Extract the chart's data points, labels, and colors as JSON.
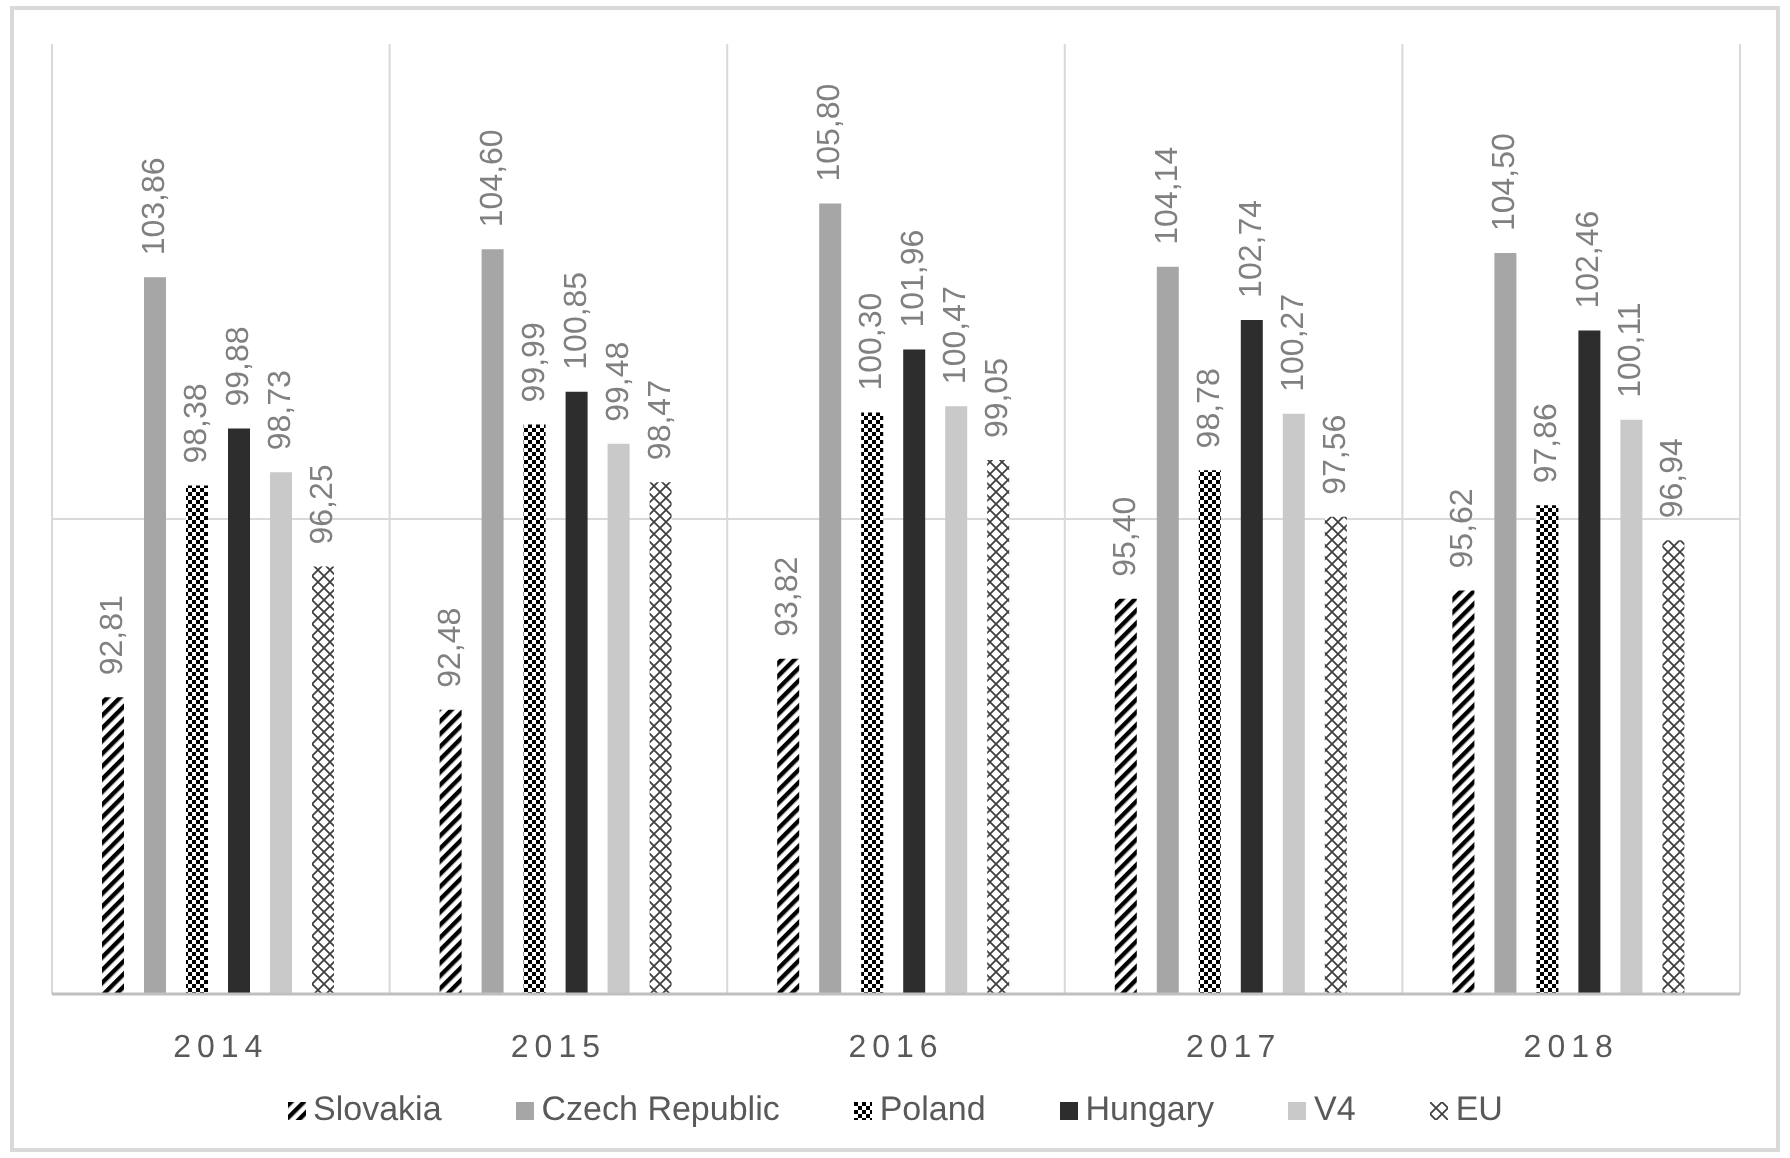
{
  "chart_data": {
    "type": "bar",
    "categories": [
      "2014",
      "2015",
      "2016",
      "2017",
      "2018"
    ],
    "series": [
      {
        "name": "Slovakia",
        "color": "#000000",
        "values": [
          92.81,
          92.48,
          93.82,
          95.4,
          95.62
        ],
        "value_labels": [
          "92,81",
          "92,48",
          "93,82",
          "95,40",
          "95,62"
        ]
      },
      {
        "name": "Czech Republic",
        "color": "#a6a6a6",
        "values": [
          103.86,
          104.6,
          105.8,
          104.14,
          104.5
        ],
        "value_labels": [
          "103,86",
          "104,60",
          "105,80",
          "104,14",
          "104,50"
        ]
      },
      {
        "name": "Poland",
        "color": "#000000",
        "values": [
          98.38,
          99.99,
          100.3,
          98.78,
          97.86
        ],
        "value_labels": [
          "98,38",
          "99,99",
          "100,30",
          "98,78",
          "97,86"
        ]
      },
      {
        "name": "Hungary",
        "color": "#2d2d2d",
        "values": [
          99.88,
          100.85,
          101.96,
          102.74,
          102.46
        ],
        "value_labels": [
          "99,88",
          "100,85",
          "101,96",
          "102,74",
          "102,46"
        ]
      },
      {
        "name": "V4",
        "color": "#c9c9c9",
        "values": [
          98.73,
          99.48,
          100.47,
          100.27,
          100.11
        ],
        "value_labels": [
          "98,73",
          "99,48",
          "100,47",
          "100,27",
          "100,11"
        ]
      },
      {
        "name": "EU",
        "color": "#404040",
        "values": [
          96.25,
          98.47,
          99.05,
          97.56,
          96.94
        ],
        "value_labels": [
          "96,25",
          "98,47",
          "99,05",
          "97,56",
          "96,94"
        ]
      }
    ],
    "ylim": [
      85,
      110
    ],
    "yticks": [
      {
        "value": 97.5,
        "label": null
      }
    ],
    "tick_labels": "x",
    "grid": true,
    "legend": "bottom"
  }
}
